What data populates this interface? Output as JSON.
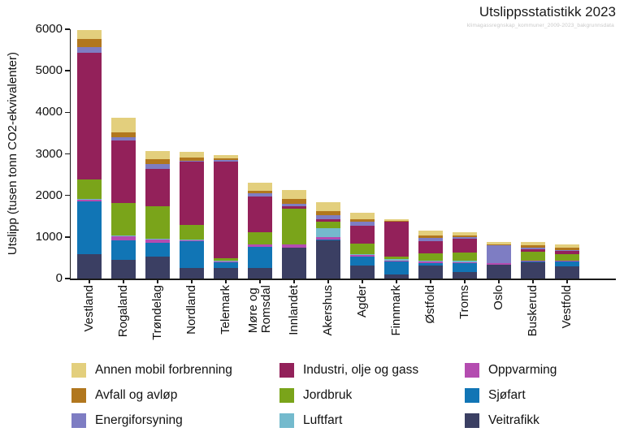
{
  "header": {
    "title": "Utslippsstatistikk 2023",
    "subtitle": "klimagassregnskap_kommuner_2009-2023_bakgrunnsdata"
  },
  "chart_data": {
    "type": "bar",
    "variant": "stacked",
    "title": "Utslippsstatistikk 2023",
    "xlabel": "",
    "ylabel": "Utslipp (tusen tonn CO2-ekvivalenter)",
    "ylim": [
      0,
      6000
    ],
    "yticks": [
      0,
      1000,
      2000,
      3000,
      4000,
      5000,
      6000
    ],
    "grid": false,
    "legend_position": "bottom",
    "categories": [
      "Vestland",
      "Rogaland",
      "Trøndelag",
      "Nordland",
      "Telemark",
      "Møre og\nRomsdal",
      "Innlandet",
      "Akershus",
      "Agder",
      "Finnmark",
      "Østfold",
      "Troms",
      "Oslo",
      "Buskerud",
      "Vestfold"
    ],
    "series": [
      {
        "name": "Veitrafikk",
        "color": "#3b3f63",
        "values": [
          595,
          450,
          520,
          250,
          250,
          245,
          750,
          925,
          310,
          100,
          310,
          160,
          330,
          390,
          285
        ]
      },
      {
        "name": "Sjøfart",
        "color": "#1175b5",
        "values": [
          1255,
          475,
          340,
          640,
          150,
          515,
          0,
          20,
          220,
          320,
          60,
          220,
          10,
          15,
          130
        ]
      },
      {
        "name": "Oppvarming",
        "color": "#b44cb0",
        "values": [
          50,
          100,
          80,
          20,
          20,
          55,
          65,
          45,
          45,
          15,
          50,
          20,
          25,
          25,
          15
        ]
      },
      {
        "name": "Luftfart",
        "color": "#74bacd",
        "values": [
          10,
          15,
          25,
          30,
          5,
          15,
          10,
          220,
          10,
          35,
          5,
          35,
          0,
          5,
          5
        ]
      },
      {
        "name": "Jordbruk",
        "color": "#7aa41a",
        "values": [
          480,
          770,
          770,
          350,
          70,
          290,
          860,
          160,
          250,
          60,
          190,
          200,
          5,
          210,
          145
        ]
      },
      {
        "name": "Industri, olje og gass",
        "color": "#93215a",
        "values": [
          3050,
          1510,
          900,
          1530,
          2330,
          860,
          55,
          65,
          430,
          830,
          280,
          320,
          10,
          60,
          80
        ]
      },
      {
        "name": "Energiforsyning",
        "color": "#7e7dc3",
        "values": [
          135,
          80,
          130,
          20,
          30,
          65,
          65,
          85,
          100,
          10,
          85,
          40,
          420,
          30,
          20
        ]
      },
      {
        "name": "Avfall og avløp",
        "color": "#b1771e",
        "values": [
          200,
          120,
          115,
          70,
          35,
          65,
          115,
          100,
          70,
          25,
          50,
          45,
          15,
          70,
          65
        ]
      },
      {
        "name": "Annen mobil forbrenning",
        "color": "#e3cf7d",
        "values": [
          200,
          350,
          200,
          140,
          80,
          200,
          220,
          210,
          150,
          40,
          130,
          70,
          70,
          70,
          70
        ]
      }
    ],
    "legend_order": [
      "Annen mobil forbrenning",
      "Industri, olje og gass",
      "Oppvarming",
      "Avfall og avløp",
      "Jordbruk",
      "Sjøfart",
      "Energiforsyning",
      "Luftfart",
      "Veitrafikk"
    ]
  }
}
